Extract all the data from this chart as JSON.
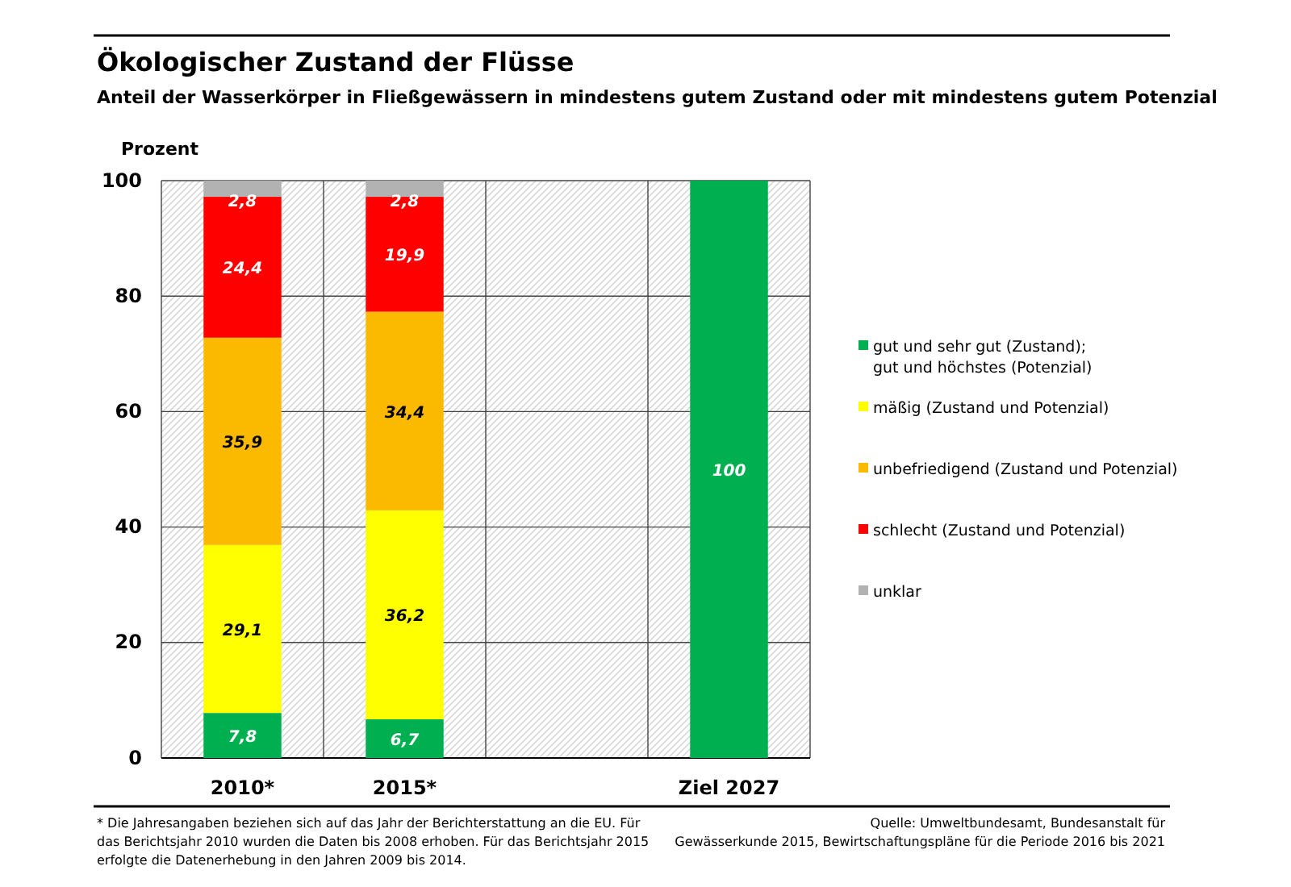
{
  "chart_data": {
    "type": "bar",
    "stacked": true,
    "title": "Ökologischer Zustand der Flüsse",
    "subtitle": "Anteil der Wasserkörper in Fließgewässern in mindestens gutem Zustand oder mit mindestens gutem Potenzial",
    "ylabel": "Prozent",
    "categories": [
      "2010*",
      "2015*",
      null,
      "Ziel 2027"
    ],
    "series": [
      {
        "name": "gut und sehr gut (Zustand);\ngut und höchstes (Potenzial)",
        "color": "#00b050",
        "values": [
          7.8,
          6.7,
          null,
          100
        ],
        "value_labels": [
          "7,8",
          "6,7",
          null,
          "100"
        ]
      },
      {
        "name": "mäßig (Zustand und Potenzial)",
        "color": "#ffff00",
        "values": [
          29.1,
          36.2,
          null,
          null
        ],
        "value_labels": [
          "29,1",
          "36,2",
          null,
          null
        ]
      },
      {
        "name": "unbefriedigend (Zustand und Potenzial)",
        "color": "#fbb900",
        "values": [
          35.9,
          34.4,
          null,
          null
        ],
        "value_labels": [
          "35,9",
          "34,4",
          null,
          null
        ]
      },
      {
        "name": "schlecht (Zustand und Potenzial)",
        "color": "#ff0000",
        "values": [
          24.4,
          19.9,
          null,
          null
        ],
        "value_labels": [
          "24,4",
          "19,9",
          null,
          null
        ]
      },
      {
        "name": "unklar",
        "color": "#b2b2b2",
        "values": [
          2.8,
          2.8,
          null,
          null
        ],
        "value_labels": [
          "2,8",
          "2,8",
          null,
          null
        ]
      }
    ],
    "ylim": [
      0,
      100
    ],
    "yticks": [
      0,
      20,
      40,
      60,
      80,
      100
    ],
    "grid": true,
    "legend": "right",
    "annotations": [
      "* Die Jahresangaben beziehen sich auf das Jahr der Berichterstattung an die EU. Für\ndas Berichtsjahr 2010 wurden die Daten bis 2008 erhoben. Für das Berichtsjahr 2015\nerfolgte die Datenerhebung in den Jahren 2009 bis 2014.",
      "Quelle: Umweltbundesamt, Bundesanstalt für\nGewässerkunde 2015, Bewirtschaftungspläne für die Periode 2016 bis 2021"
    ]
  }
}
